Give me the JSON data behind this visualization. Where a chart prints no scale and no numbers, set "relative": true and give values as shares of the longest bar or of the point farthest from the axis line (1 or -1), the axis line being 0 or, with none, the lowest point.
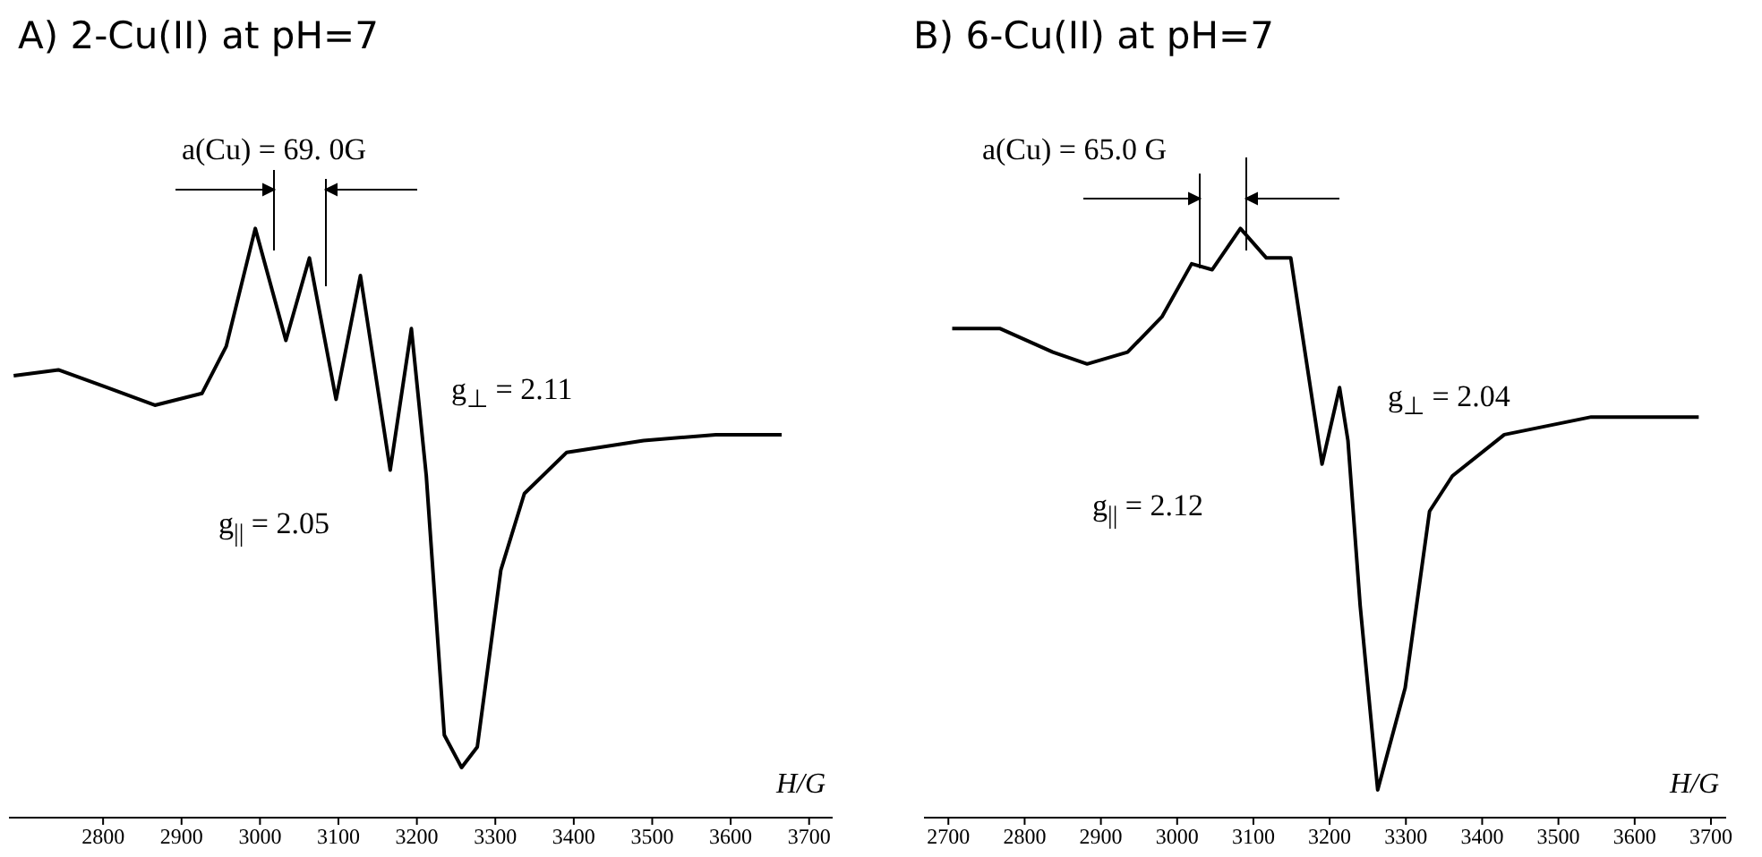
{
  "chart_data": [
    {
      "type": "line",
      "title": "A) 2-Cu(II) at pH=7",
      "xlabel": "H/G",
      "relative": true,
      "color": "#000000",
      "xlim": [
        2680,
        3730
      ],
      "xticks": [
        2800,
        2900,
        3000,
        3100,
        3200,
        3300,
        3400,
        3500,
        3600,
        3700
      ],
      "x": [
        2686,
        2743,
        2805,
        2866,
        2926,
        2957,
        2994,
        3033,
        3063,
        3097,
        3128,
        3166,
        3193,
        3212,
        3235,
        3257,
        3277,
        3307,
        3337,
        3391,
        3489,
        3581,
        3665
      ],
      "values": [
        0.75,
        0.76,
        0.73,
        0.7,
        0.72,
        0.8,
        1,
        0.81,
        0.95,
        0.71,
        0.92,
        0.59,
        0.83,
        0.58,
        0.14,
        0.085,
        0.12,
        0.42,
        0.55,
        0.62,
        0.64,
        0.65,
        0.65
      ],
      "annotations": [
        "a(Cu) = 69. 0G",
        "g$_{||}$ = 2.05",
        "g$_{⊥}$ = 2.11"
      ]
    },
    {
      "type": "line",
      "title": "B) 6-Cu(II) at pH=7",
      "xlabel": "H/G",
      "relative": true,
      "color": "#000000",
      "xlim": [
        2668,
        3720
      ],
      "xticks": [
        2700,
        2800,
        2900,
        3000,
        3100,
        3200,
        3300,
        3400,
        3500,
        3600,
        3700
      ],
      "x": [
        2705,
        2768,
        2837,
        2882,
        2935,
        2980,
        3019,
        3046,
        3083,
        3117,
        3149,
        3163,
        3190,
        3213,
        3224,
        3240,
        3263,
        3299,
        3331,
        3361,
        3429,
        3543,
        3684
      ],
      "values": [
        0.83,
        0.83,
        0.79,
        0.77,
        0.79,
        0.85,
        0.94,
        0.93,
        1,
        0.95,
        0.95,
        0.83,
        0.6,
        0.73,
        0.64,
        0.36,
        0.047,
        0.22,
        0.52,
        0.58,
        0.65,
        0.68,
        0.68
      ],
      "annotations": [
        "a(Cu) = 65.0 G",
        "g$_{⊥}$ = 2.04",
        "g$_{||}$ = 2.12"
      ]
    }
  ]
}
